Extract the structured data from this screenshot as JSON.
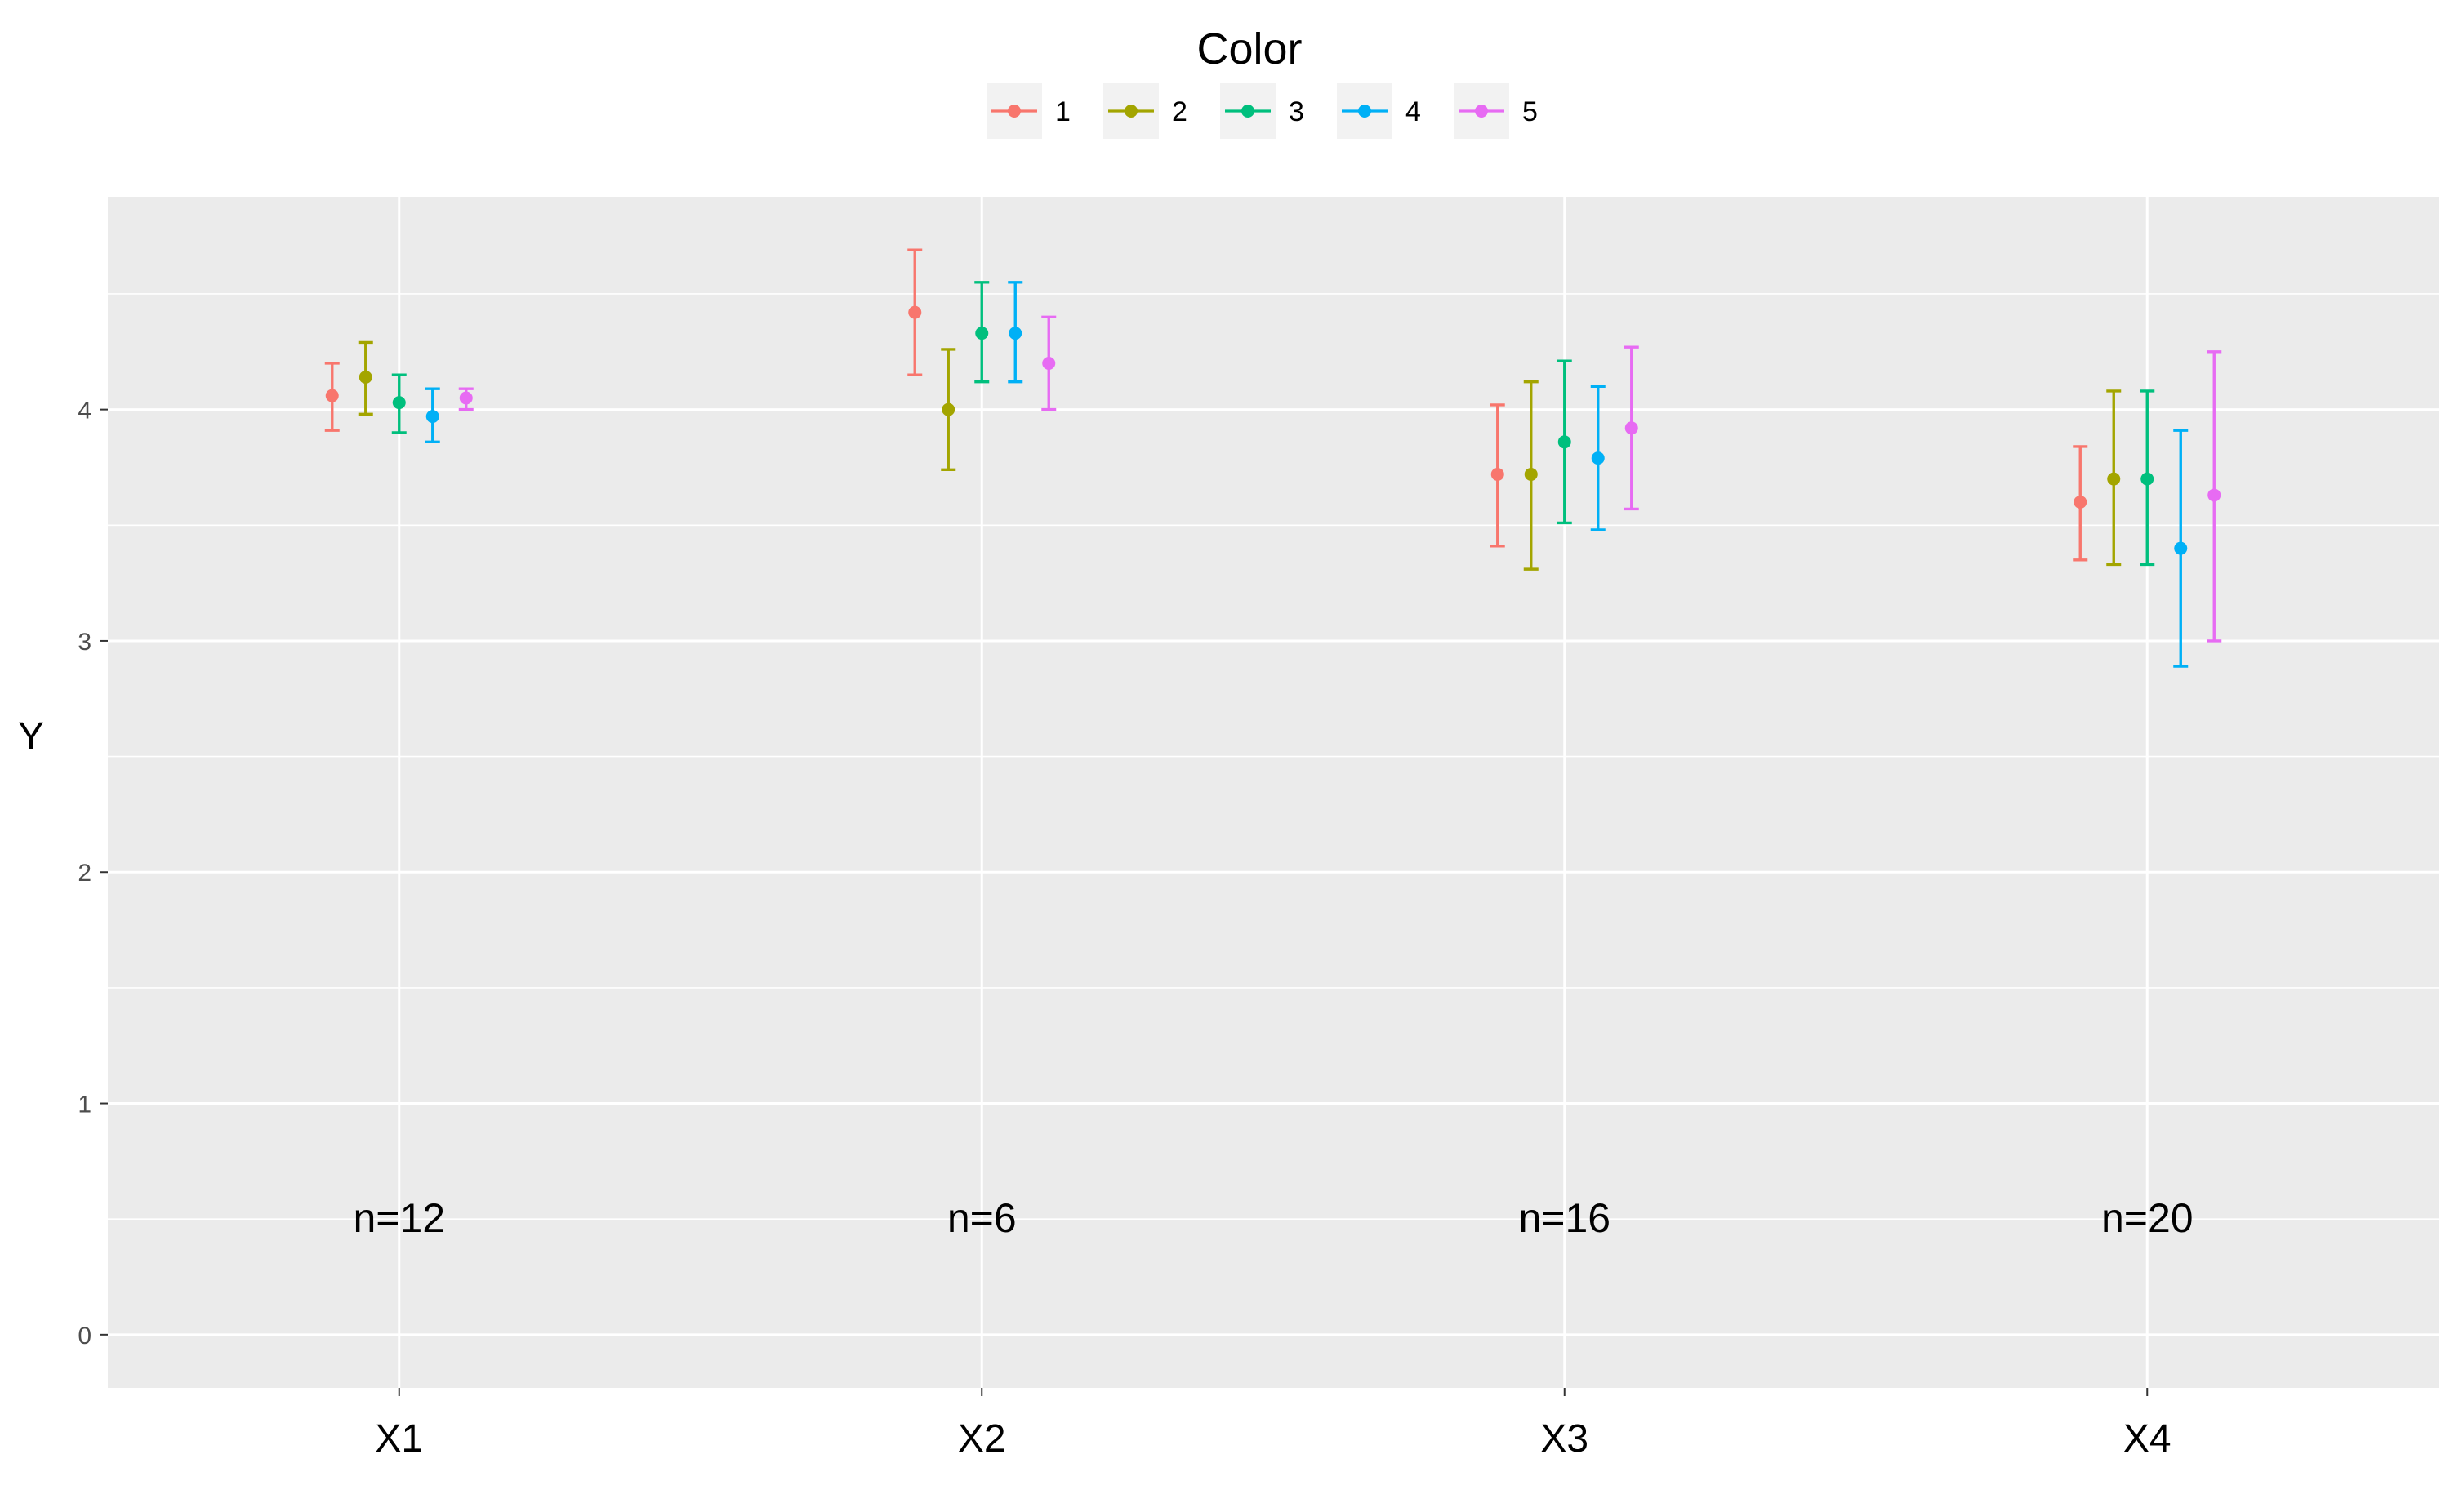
{
  "chart_data": {
    "type": "scatter",
    "subtype": "dot-and-errorbar",
    "legend_title": "Color",
    "legend_position": "top",
    "ylabel": "Y",
    "xlabel": "",
    "ylim": [
      -0.23,
      4.92
    ],
    "yticks": [
      0,
      1,
      2,
      3,
      4
    ],
    "ytick_labels": [
      "0",
      "1",
      "2",
      "3",
      "4"
    ],
    "grid": true,
    "colors": {
      "panel_background": "#ebebeb",
      "grid": "#ffffff"
    },
    "categories": [
      "X1",
      "X2",
      "X3",
      "X4"
    ],
    "category_annotations": [
      "n=12",
      "n=6",
      "n=16",
      "n=20"
    ],
    "series": [
      {
        "name": "1",
        "color": "#F8766D",
        "values": [
          4.06,
          4.42,
          3.72,
          3.6
        ],
        "lower": [
          3.91,
          4.15,
          3.41,
          3.35
        ],
        "upper": [
          4.2,
          4.69,
          4.02,
          3.84
        ]
      },
      {
        "name": "2",
        "color": "#A3A500",
        "values": [
          4.14,
          4.0,
          3.72,
          3.7
        ],
        "lower": [
          3.98,
          3.74,
          3.31,
          3.33
        ],
        "upper": [
          4.29,
          4.26,
          4.12,
          4.08
        ]
      },
      {
        "name": "3",
        "color": "#00BF7D",
        "values": [
          4.03,
          4.33,
          3.86,
          3.7
        ],
        "lower": [
          3.9,
          4.12,
          3.51,
          3.33
        ],
        "upper": [
          4.15,
          4.55,
          4.21,
          4.08
        ]
      },
      {
        "name": "4",
        "color": "#00B0F6",
        "values": [
          3.97,
          4.33,
          3.79,
          3.4
        ],
        "lower": [
          3.86,
          4.12,
          3.48,
          2.89
        ],
        "upper": [
          4.09,
          4.55,
          4.1,
          3.91
        ]
      },
      {
        "name": "5",
        "color": "#E76BF3",
        "values": [
          4.05,
          4.2,
          3.92,
          3.63
        ],
        "lower": [
          4.0,
          4.0,
          3.57,
          3.0
        ],
        "upper": [
          4.09,
          4.4,
          4.27,
          4.25
        ]
      }
    ]
  }
}
